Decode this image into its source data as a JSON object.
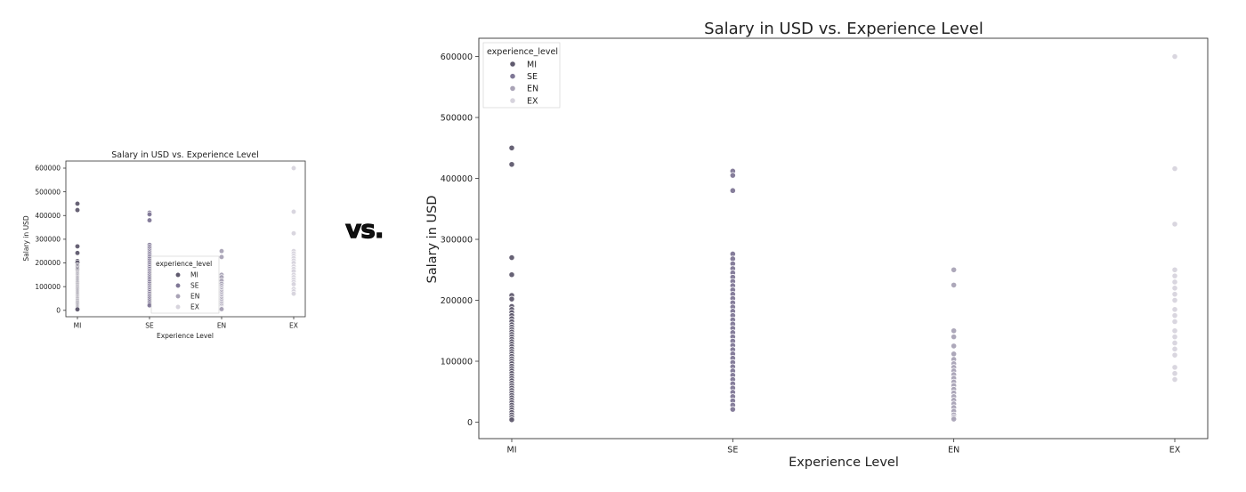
{
  "separator_text": "vs.",
  "chart_data": {
    "type": "scatter",
    "title": "Salary in USD vs. Experience Level",
    "xlabel": "Experience Level",
    "ylabel": "Salary in USD",
    "categories": [
      "MI",
      "SE",
      "EN",
      "EX"
    ],
    "ylim": [
      -27000,
      630000
    ],
    "yticks": [
      0,
      100000,
      200000,
      300000,
      400000,
      500000,
      600000
    ],
    "ytick_labels": [
      "0",
      "100000",
      "200000",
      "300000",
      "400000",
      "500000",
      "600000"
    ],
    "grid": false,
    "legend": {
      "title": "experience_level",
      "placement": "top-left"
    },
    "series": [
      {
        "name": "MI",
        "color": "#5f5a6e",
        "values": [
          450000,
          423000,
          270000,
          242000,
          208000,
          202000,
          190000,
          185000,
          180000,
          175000,
          170000,
          165000,
          160000,
          156000,
          152000,
          148000,
          144000,
          140000,
          136000,
          132000,
          128000,
          124000,
          120000,
          116000,
          112000,
          108000,
          104000,
          100000,
          96000,
          92000,
          88000,
          84000,
          80000,
          76000,
          72000,
          68000,
          64000,
          60000,
          56000,
          52000,
          48000,
          44000,
          40000,
          36000,
          32000,
          28000,
          24000,
          20000,
          16000,
          12000,
          8000,
          4000
        ]
      },
      {
        "name": "SE",
        "color": "#7f7796",
        "values": [
          412000,
          405000,
          380000,
          276000,
          268000,
          260000,
          252000,
          245000,
          238000,
          231000,
          224000,
          217000,
          210000,
          203000,
          196000,
          189000,
          182000,
          175000,
          168000,
          161000,
          154000,
          147000,
          140000,
          133000,
          126000,
          119000,
          112000,
          105000,
          98000,
          91000,
          84000,
          77000,
          70000,
          63000,
          56000,
          49000,
          42000,
          35000,
          28000,
          21000
        ]
      },
      {
        "name": "EN",
        "color": "#a9a3b6",
        "values": [
          250000,
          225000,
          150000,
          140000,
          125000,
          112000,
          103000,
          96000,
          90000,
          84000,
          78000,
          72000,
          66000,
          60000,
          54000,
          48000,
          42000,
          36000,
          30000,
          24000,
          18000,
          12000,
          8000,
          5000
        ]
      },
      {
        "name": "EX",
        "color": "#d7d4dd",
        "values": [
          600000,
          416000,
          325000,
          250000,
          240000,
          230000,
          220000,
          210000,
          200000,
          185000,
          175000,
          165000,
          150000,
          140000,
          130000,
          120000,
          110000,
          90000,
          80000,
          70000
        ]
      }
    ]
  }
}
